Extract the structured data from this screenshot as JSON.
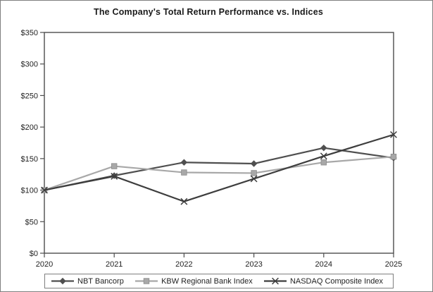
{
  "chart_data": {
    "type": "line",
    "title": "The Company's Total Return Performance vs. Indices",
    "x": [
      "2020",
      "2021",
      "2022",
      "2023",
      "2024",
      "2025"
    ],
    "series": [
      {
        "name": "NBT Bancorp",
        "marker": "diamond",
        "color": "#4f4f4f",
        "values": [
          100,
          123,
          144,
          142,
          167,
          151
        ]
      },
      {
        "name": "KBW Regional Bank Index",
        "marker": "square",
        "color": "#a8a8a8",
        "values": [
          100,
          138,
          128,
          127,
          144,
          153
        ]
      },
      {
        "name": "NASDAQ Composite Index",
        "marker": "x",
        "color": "#3d3d3d",
        "values": [
          100,
          122,
          82,
          118,
          154,
          188
        ]
      }
    ],
    "ylim": [
      0,
      350
    ],
    "ytick_step": 50,
    "ytick_labels": [
      "$0",
      "$50",
      "$100",
      "$150",
      "$200",
      "$250",
      "$300",
      "$350"
    ],
    "grid": false,
    "legend_position": "bottom",
    "axis_color": "#4d4d4d",
    "text_color": "#1f1f1f"
  }
}
